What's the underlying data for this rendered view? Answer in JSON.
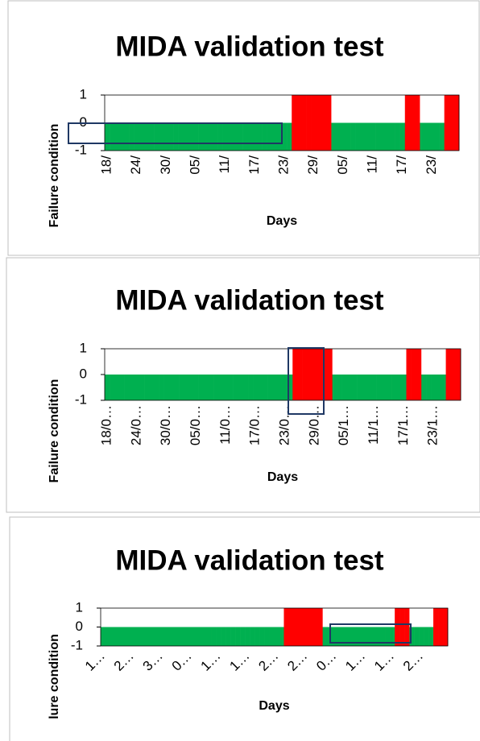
{
  "chart_data": [
    {
      "type": "bar",
      "title": "MIDA validation test",
      "ylabel": "Failure condition",
      "xlabel": "Days",
      "categories": [
        "18/",
        null,
        null,
        null,
        null,
        null,
        "24/",
        null,
        null,
        null,
        null,
        null,
        "30/",
        null,
        null,
        null,
        null,
        null,
        "05/",
        null,
        null,
        null,
        null,
        null,
        "11/",
        null,
        null,
        null,
        null,
        null,
        "17/",
        null,
        null,
        null,
        null,
        null,
        "23/",
        null,
        null,
        null,
        null,
        null,
        "29/",
        null,
        null,
        null,
        null,
        null,
        "05/",
        null,
        null,
        null,
        null,
        null,
        "11/",
        null,
        null,
        null,
        null,
        null,
        "17/",
        null,
        null,
        null,
        null,
        null,
        "23/",
        null,
        null,
        null,
        null,
        null
      ],
      "series": [
        {
          "color": "#00b050",
          "values": [
            0,
            0,
            0,
            0,
            0,
            0,
            0,
            0,
            0,
            0,
            0,
            0,
            0,
            0,
            0,
            0,
            0,
            0,
            0,
            0,
            0,
            0,
            0,
            0,
            0,
            0,
            0,
            0,
            0,
            0,
            0,
            0,
            0,
            0,
            0,
            0,
            0,
            0,
            null,
            null,
            null,
            null,
            null,
            null,
            null,
            null,
            0,
            0,
            0,
            0,
            0,
            0,
            0,
            0,
            0,
            0,
            0,
            0,
            0,
            0,
            0,
            null,
            null,
            null,
            0,
            0,
            0,
            0,
            0,
            null,
            null,
            null
          ]
        },
        {
          "color": "#ff0000",
          "values": [
            null,
            null,
            null,
            null,
            null,
            null,
            null,
            null,
            null,
            null,
            null,
            null,
            null,
            null,
            null,
            null,
            null,
            null,
            null,
            null,
            null,
            null,
            null,
            null,
            null,
            null,
            null,
            null,
            null,
            null,
            null,
            null,
            null,
            null,
            null,
            null,
            null,
            null,
            1,
            1,
            1,
            1,
            1,
            1,
            1,
            1,
            null,
            null,
            null,
            null,
            null,
            null,
            null,
            null,
            null,
            null,
            null,
            null,
            null,
            null,
            null,
            1,
            1,
            1,
            null,
            null,
            null,
            null,
            null,
            1,
            1,
            1
          ]
        }
      ],
      "ylim": [
        -1,
        1
      ],
      "yticks": [
        -1,
        0,
        1
      ]
    },
    {
      "type": "bar",
      "title": "MIDA validation test",
      "ylabel": "Failure condition",
      "xlabel": "Days",
      "categories": [
        "18/0…",
        null,
        null,
        null,
        null,
        null,
        "24/0…",
        null,
        null,
        null,
        null,
        null,
        "30/0…",
        null,
        null,
        null,
        null,
        null,
        "05/0…",
        null,
        null,
        null,
        null,
        null,
        "11/0…",
        null,
        null,
        null,
        null,
        null,
        "17/0…",
        null,
        null,
        null,
        null,
        null,
        "23/0…",
        null,
        null,
        null,
        null,
        null,
        "29/0…",
        null,
        null,
        null,
        null,
        null,
        "05/1…",
        null,
        null,
        null,
        null,
        null,
        "11/1…",
        null,
        null,
        null,
        null,
        null,
        "17/1…",
        null,
        null,
        null,
        null,
        null,
        "23/1…",
        null,
        null,
        null,
        null,
        null
      ],
      "series": [
        {
          "color": "#00b050",
          "values": [
            0,
            0,
            0,
            0,
            0,
            0,
            0,
            0,
            0,
            0,
            0,
            0,
            0,
            0,
            0,
            0,
            0,
            0,
            0,
            0,
            0,
            0,
            0,
            0,
            0,
            0,
            0,
            0,
            0,
            0,
            0,
            0,
            0,
            0,
            0,
            0,
            0,
            0,
            null,
            null,
            null,
            null,
            null,
            null,
            null,
            null,
            0,
            0,
            0,
            0,
            0,
            0,
            0,
            0,
            0,
            0,
            0,
            0,
            0,
            0,
            0,
            null,
            null,
            null,
            0,
            0,
            0,
            0,
            0,
            null,
            null,
            null
          ]
        },
        {
          "color": "#ff0000",
          "values": [
            null,
            null,
            null,
            null,
            null,
            null,
            null,
            null,
            null,
            null,
            null,
            null,
            null,
            null,
            null,
            null,
            null,
            null,
            null,
            null,
            null,
            null,
            null,
            null,
            null,
            null,
            null,
            null,
            null,
            null,
            null,
            null,
            null,
            null,
            null,
            null,
            null,
            null,
            1,
            1,
            1,
            1,
            1,
            1,
            1,
            1,
            null,
            null,
            null,
            null,
            null,
            null,
            null,
            null,
            null,
            null,
            null,
            null,
            null,
            null,
            null,
            1,
            1,
            1,
            null,
            null,
            null,
            null,
            null,
            1,
            1,
            1
          ]
        }
      ],
      "ylim": [
        -1,
        1
      ],
      "yticks": [
        -1,
        0,
        1
      ]
    },
    {
      "type": "bar",
      "title": "MIDA validation test",
      "ylabel": "lure condition",
      "xlabel": "Days",
      "categories": [
        "1…",
        null,
        null,
        null,
        null,
        null,
        "2…",
        null,
        null,
        null,
        null,
        null,
        "3…",
        null,
        null,
        null,
        null,
        null,
        "0…",
        null,
        null,
        null,
        null,
        null,
        "1…",
        null,
        null,
        null,
        null,
        null,
        "1…",
        null,
        null,
        null,
        null,
        null,
        "2…",
        null,
        null,
        null,
        null,
        null,
        "2…",
        null,
        null,
        null,
        null,
        null,
        "0…",
        null,
        null,
        null,
        null,
        null,
        "1…",
        null,
        null,
        null,
        null,
        null,
        "1…",
        null,
        null,
        null,
        null,
        null,
        "2…",
        null,
        null,
        null,
        null,
        null
      ],
      "series": [
        {
          "color": "#00b050",
          "values": [
            0,
            0,
            0,
            0,
            0,
            0,
            0,
            0,
            0,
            0,
            0,
            0,
            0,
            0,
            0,
            0,
            0,
            0,
            0,
            0,
            0,
            0,
            0,
            0,
            0,
            0,
            0,
            0,
            0,
            0,
            0,
            0,
            0,
            0,
            0,
            0,
            0,
            0,
            null,
            null,
            null,
            null,
            null,
            null,
            null,
            null,
            0,
            0,
            0,
            0,
            0,
            0,
            0,
            0,
            0,
            0,
            0,
            0,
            0,
            0,
            0,
            null,
            null,
            null,
            0,
            0,
            0,
            0,
            0,
            null,
            null,
            null
          ]
        },
        {
          "color": "#ff0000",
          "values": [
            null,
            null,
            null,
            null,
            null,
            null,
            null,
            null,
            null,
            null,
            null,
            null,
            null,
            null,
            null,
            null,
            null,
            null,
            null,
            null,
            null,
            null,
            null,
            null,
            null,
            null,
            null,
            null,
            null,
            null,
            null,
            null,
            null,
            null,
            null,
            null,
            null,
            null,
            1,
            1,
            1,
            1,
            1,
            1,
            1,
            1,
            null,
            null,
            null,
            null,
            null,
            null,
            null,
            null,
            null,
            null,
            null,
            null,
            null,
            null,
            null,
            1,
            1,
            1,
            null,
            null,
            null,
            null,
            null,
            1,
            1,
            1
          ]
        }
      ],
      "ylim": [
        -1,
        1
      ],
      "yticks": [
        -1,
        0,
        1
      ]
    }
  ]
}
